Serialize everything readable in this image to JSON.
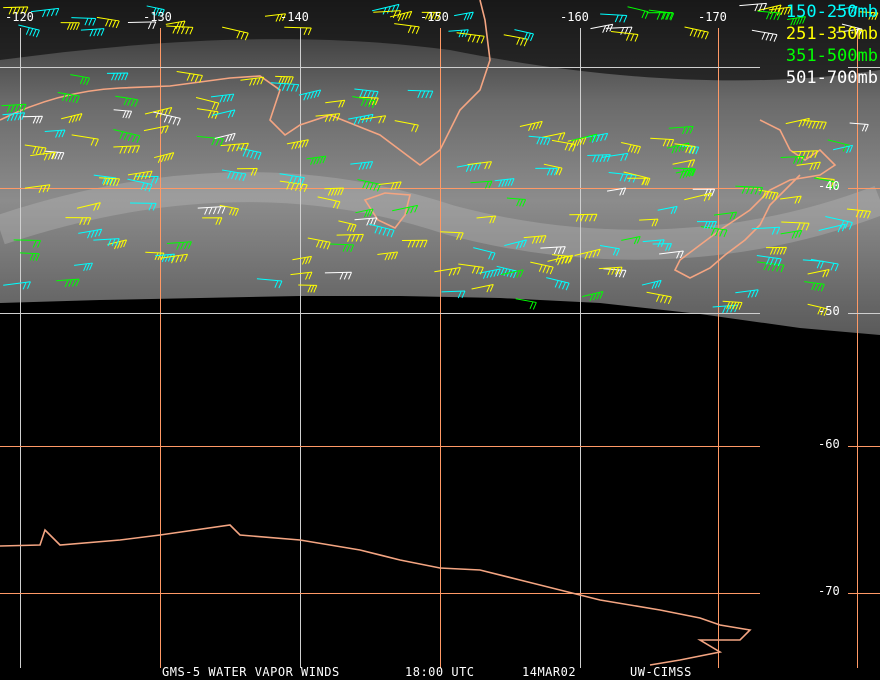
{
  "map": {
    "longitude_labels": [
      "-120",
      "-130",
      "-140",
      "-150",
      "-160",
      "-170"
    ],
    "latitude_labels": [
      "-40",
      "-50",
      "-60",
      "-70"
    ],
    "colors": {
      "grid_orange": "#ff9966",
      "grid_white": "#ffffff",
      "coast": "#f4a582",
      "band_150_250": "#00ffff",
      "band_251_350": "#ffff00",
      "band_351_500": "#00ff00",
      "band_501_700": "#ffffff"
    }
  },
  "legend": [
    {
      "label": "150-250mb",
      "color": "#00ffff"
    },
    {
      "label": "251-350mb",
      "color": "#ffff00"
    },
    {
      "label": "351-500mb",
      "color": "#00ff00"
    },
    {
      "label": "501-700mb",
      "color": "#ffffff"
    }
  ],
  "caption": {
    "product": "GMS-5 WATER VAPOR WINDS",
    "time": "18:00 UTC",
    "date": "14MAR02",
    "source": "UW-CIMSS"
  }
}
